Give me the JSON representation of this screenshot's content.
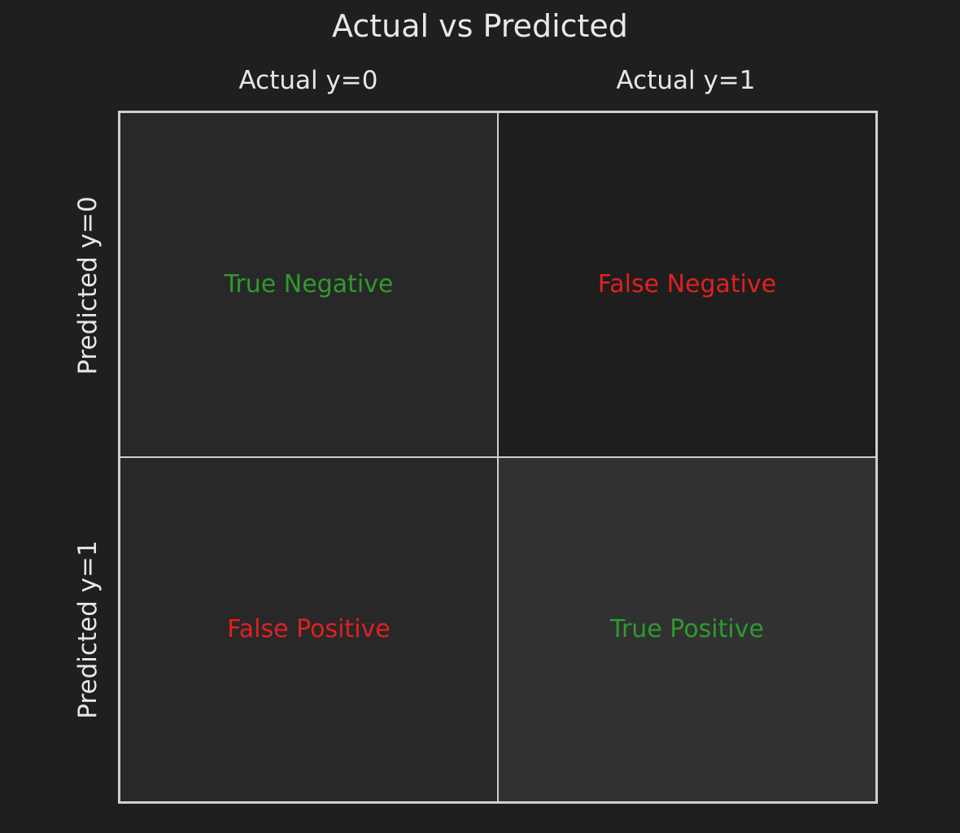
{
  "title": "Actual vs Predicted",
  "columns": [
    {
      "label": "Actual y=0"
    },
    {
      "label": "Actual y=1"
    }
  ],
  "rows": [
    {
      "label": "Predicted y=0"
    },
    {
      "label": "Predicted y=1"
    }
  ],
  "cells": [
    {
      "label": "True Negative",
      "color": "#2e9a2e"
    },
    {
      "label": "False Negative",
      "color": "#e02020"
    },
    {
      "label": "False Positive",
      "color": "#e02020"
    },
    {
      "label": "True Positive",
      "color": "#2e9a2e"
    }
  ]
}
